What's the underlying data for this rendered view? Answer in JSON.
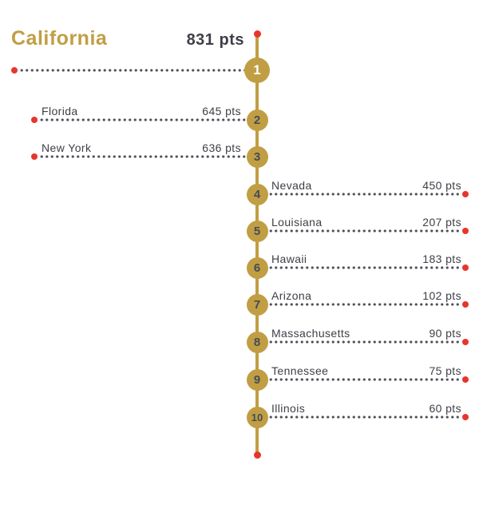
{
  "header": {
    "title": "California",
    "points_label": "831 pts"
  },
  "colors": {
    "gold": "#C19E44",
    "red": "#E8352B",
    "dark_text": "#3E3E46",
    "dot_leader": "#50505A",
    "rank_number": "#454C56",
    "rank1_number": "#FFFFFF"
  },
  "chart_data": {
    "type": "ranking-timeline",
    "title": "California",
    "unit": "pts",
    "legend": "none",
    "orientation": "vertical-spine-with-dotted-leaders",
    "entries": [
      {
        "rank": 1,
        "state": "California",
        "points": 831,
        "side": "left",
        "highlight": true
      },
      {
        "rank": 2,
        "state": "Florida",
        "points": 645,
        "side": "left",
        "highlight": false
      },
      {
        "rank": 3,
        "state": "New York",
        "points": 636,
        "side": "left",
        "highlight": false
      },
      {
        "rank": 4,
        "state": "Nevada",
        "points": 450,
        "side": "right",
        "highlight": false
      },
      {
        "rank": 5,
        "state": "Louisiana",
        "points": 207,
        "side": "right",
        "highlight": false
      },
      {
        "rank": 6,
        "state": "Hawaii",
        "points": 183,
        "side": "right",
        "highlight": false
      },
      {
        "rank": 7,
        "state": "Arizona",
        "points": 102,
        "side": "right",
        "highlight": false
      },
      {
        "rank": 8,
        "state": "Massachusetts",
        "points": 90,
        "side": "right",
        "highlight": false
      },
      {
        "rank": 9,
        "state": "Tennessee",
        "points": 75,
        "side": "right",
        "highlight": false
      },
      {
        "rank": 10,
        "state": "Illinois",
        "points": 60,
        "side": "right",
        "highlight": false
      }
    ]
  }
}
